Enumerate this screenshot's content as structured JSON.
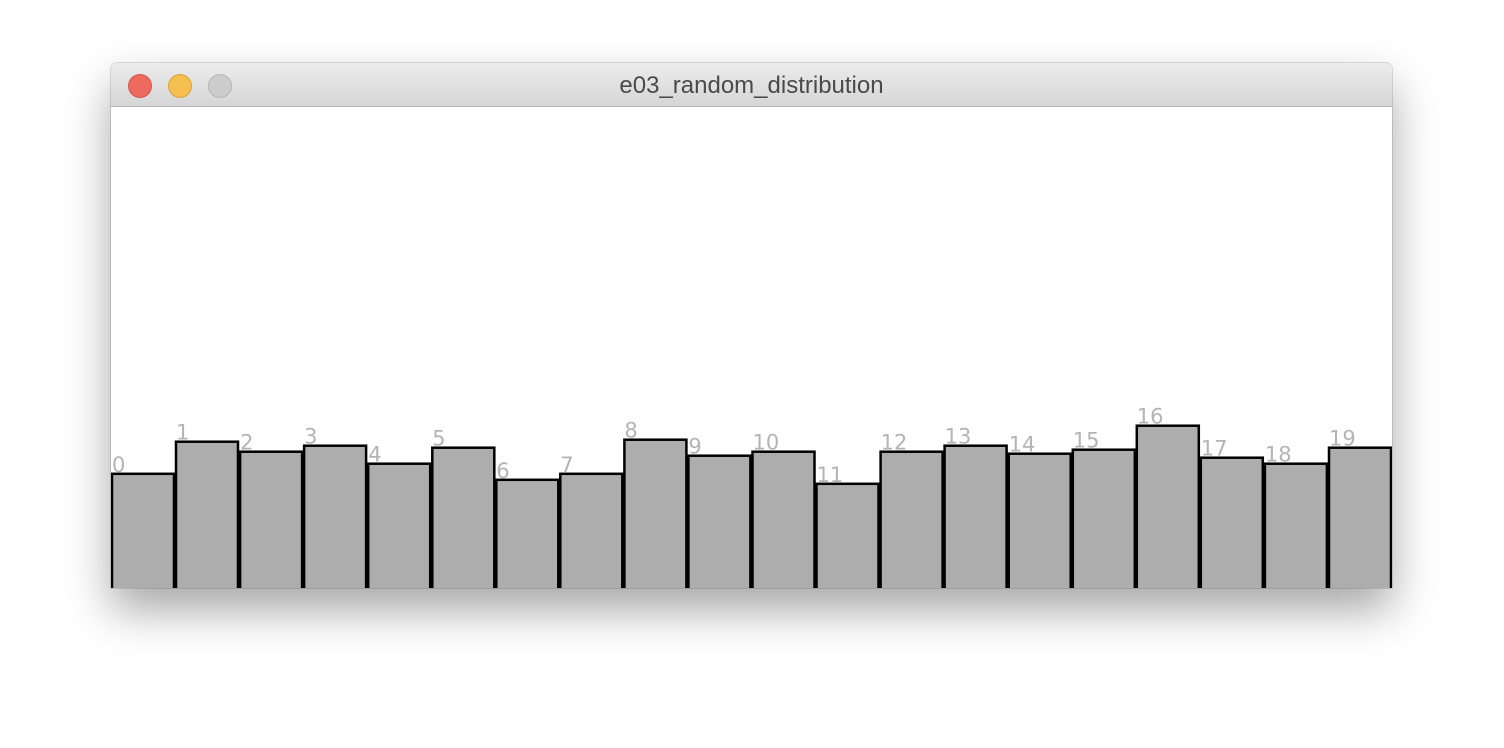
{
  "window": {
    "title": "e03_random_distribution",
    "controls": {
      "close": "close",
      "minimize": "minimize",
      "zoom": "zoom"
    }
  },
  "chart_data": {
    "type": "bar",
    "categories": [
      "0",
      "1",
      "2",
      "3",
      "4",
      "5",
      "6",
      "7",
      "8",
      "9",
      "10",
      "11",
      "12",
      "13",
      "14",
      "15",
      "16",
      "17",
      "18",
      "19"
    ],
    "values": [
      114,
      146,
      136,
      142,
      124,
      140,
      108,
      114,
      148,
      132,
      136,
      104,
      136,
      142,
      134,
      138,
      162,
      130,
      124,
      140
    ],
    "ylim": [
      0,
      480
    ],
    "grid": false,
    "legend": "none",
    "colors": {
      "bar_fill": "#adadad",
      "bar_stroke": "#000000",
      "label": "#b4b4b4",
      "background": "#fefefe"
    }
  }
}
